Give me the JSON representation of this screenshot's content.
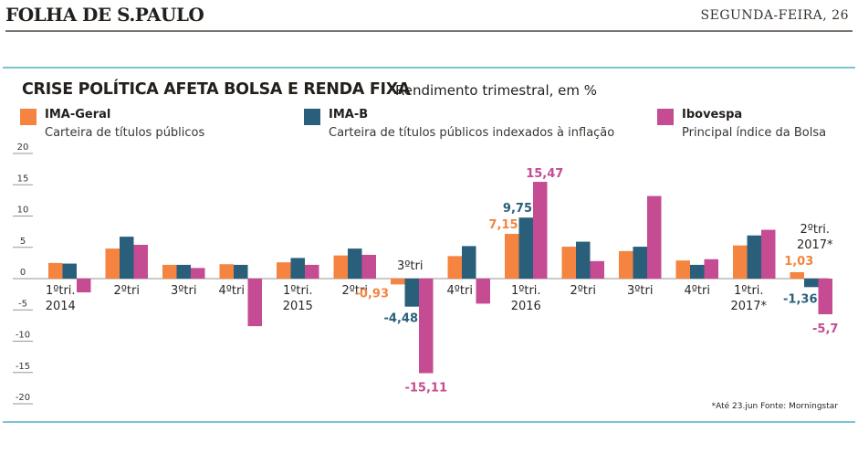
{
  "header": {
    "masthead": "FOLHA DE S.PAULO",
    "dateline": "SEGUNDA-FEIRA, 26"
  },
  "chart_data": {
    "type": "bar",
    "title": "CRISE POLÍTICA AFETA BOLSA E RENDA FIXA",
    "subtitle": "Rendimento trimestral, em %",
    "xlabel": "",
    "ylabel": "",
    "ylim": [
      -20,
      20
    ],
    "yticks": [
      20,
      15,
      10,
      5,
      0,
      -5,
      -10,
      -15,
      -20
    ],
    "ytick_labels": [
      "20",
      "15",
      "10",
      "5",
      "0",
      "-5",
      "-10",
      "-15",
      "-20"
    ],
    "grid": false,
    "legend_position": "top",
    "categories": [
      {
        "line1": "1ºtri.",
        "line2": "2014"
      },
      {
        "line1": "2ºtri",
        "line2": ""
      },
      {
        "line1": "3ºtri",
        "line2": ""
      },
      {
        "line1": "4ºtri",
        "line2": ""
      },
      {
        "line1": "1ºtri.",
        "line2": "2015"
      },
      {
        "line1": "2ºtri",
        "line2": ""
      },
      {
        "line1": "3ºtri",
        "line2": ""
      },
      {
        "line1": "4ºtri",
        "line2": ""
      },
      {
        "line1": "1ºtri.",
        "line2": "2016"
      },
      {
        "line1": "2ºtri",
        "line2": ""
      },
      {
        "line1": "3ºtri",
        "line2": ""
      },
      {
        "line1": "4ºtri",
        "line2": ""
      },
      {
        "line1": "1ºtri.",
        "line2": "2017*"
      },
      {
        "line1": "2ºtri.",
        "line2": "2017*"
      }
    ],
    "series": [
      {
        "name": "IMA-Geral",
        "description": "Carteira de títulos públicos",
        "color": "#f4843f",
        "values": [
          2.5,
          4.8,
          2.2,
          2.3,
          2.6,
          3.7,
          -0.93,
          3.6,
          7.15,
          5.1,
          4.4,
          2.9,
          5.3,
          1.03
        ]
      },
      {
        "name": "IMA-B",
        "description": "Carteira de títulos públicos indexados à inflação",
        "color": "#2a5f7c",
        "values": [
          2.4,
          6.7,
          2.2,
          2.2,
          3.3,
          4.8,
          -4.48,
          5.2,
          9.75,
          5.9,
          5.1,
          2.2,
          6.9,
          -1.36
        ]
      },
      {
        "name": "Ibovespa",
        "description": "Principal índice da Bolsa",
        "color": "#c54b93",
        "values": [
          -2.2,
          5.4,
          1.7,
          -7.6,
          2.2,
          3.8,
          -15.11,
          -4.0,
          15.47,
          2.8,
          13.2,
          3.1,
          7.8,
          -5.7
        ]
      }
    ],
    "data_labels": [
      {
        "category": 6,
        "series": 0,
        "text": "-0,93"
      },
      {
        "category": 6,
        "series": 1,
        "text": "-4,48"
      },
      {
        "category": 6,
        "series": 2,
        "text": "-15,11"
      },
      {
        "category": 8,
        "series": 0,
        "text": "7,15"
      },
      {
        "category": 8,
        "series": 1,
        "text": "9,75"
      },
      {
        "category": 8,
        "series": 2,
        "text": "15,47"
      },
      {
        "category": 13,
        "series": 0,
        "text": "1,03"
      },
      {
        "category": 13,
        "series": 1,
        "text": "-1,36"
      },
      {
        "category": 13,
        "series": 2,
        "text": "-5,7"
      }
    ],
    "footnote": "*Até 23.jun  Fonte: Morningstar"
  }
}
